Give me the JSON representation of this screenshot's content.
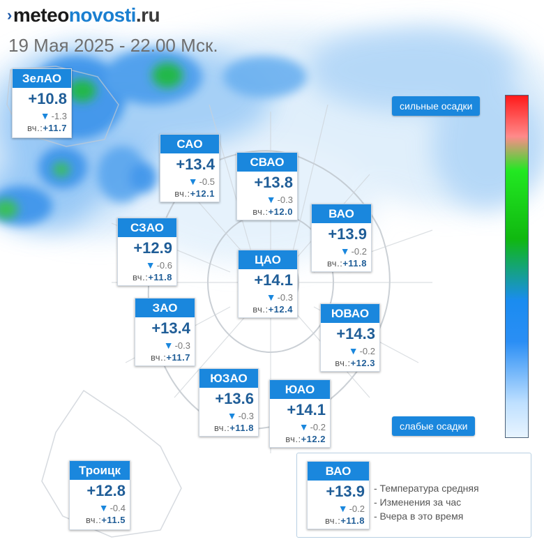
{
  "header": {
    "logo_parts": [
      "meteo",
      "novosti",
      ".ru"
    ],
    "datetime": "19 Мая 2025 - 22.00 Мск."
  },
  "prefix_yesterday": "вч.:",
  "districts": [
    {
      "name": "ЗелАО",
      "temp": "+10.8",
      "change": "-1.3",
      "yesterday": "+11.7"
    },
    {
      "name": "САО",
      "temp": "+13.4",
      "change": "-0.5",
      "yesterday": "+12.1"
    },
    {
      "name": "СВАО",
      "temp": "+13.8",
      "change": "-0.3",
      "yesterday": "+12.0"
    },
    {
      "name": "ВАО",
      "temp": "+13.9",
      "change": "-0.2",
      "yesterday": "+11.8"
    },
    {
      "name": "СЗАО",
      "temp": "+12.9",
      "change": "-0.6",
      "yesterday": "+11.8"
    },
    {
      "name": "ЦАО",
      "temp": "+14.1",
      "change": "-0.3",
      "yesterday": "+12.4"
    },
    {
      "name": "ЗАО",
      "temp": "+13.4",
      "change": "-0.3",
      "yesterday": "+11.7"
    },
    {
      "name": "ЮВАО",
      "temp": "+14.3",
      "change": "-0.2",
      "yesterday": "+12.3"
    },
    {
      "name": "ЮЗАО",
      "temp": "+13.6",
      "change": "-0.3",
      "yesterday": "+11.8"
    },
    {
      "name": "ЮАО",
      "temp": "+14.1",
      "change": "-0.2",
      "yesterday": "+12.2"
    },
    {
      "name": "Троицк",
      "temp": "+12.8",
      "change": "-0.4",
      "yesterday": "+11.5"
    }
  ],
  "scale": {
    "top_label": "сильные осадки",
    "bottom_label": "слабые осадки"
  },
  "legend": {
    "example": {
      "name": "ВАО",
      "temp": "+13.9",
      "change": "-0.2",
      "yesterday": "+11.8"
    },
    "items": [
      "- Температура средняя",
      "- Изменения за час",
      "- Вчера в это время"
    ]
  },
  "colors": {
    "accent": "#1a87dd",
    "temperature": "#1f5d97",
    "precip_light": "#8ec3f5",
    "precip_medium": "#2f8be8",
    "precip_heavy": "#2dbf4a"
  }
}
